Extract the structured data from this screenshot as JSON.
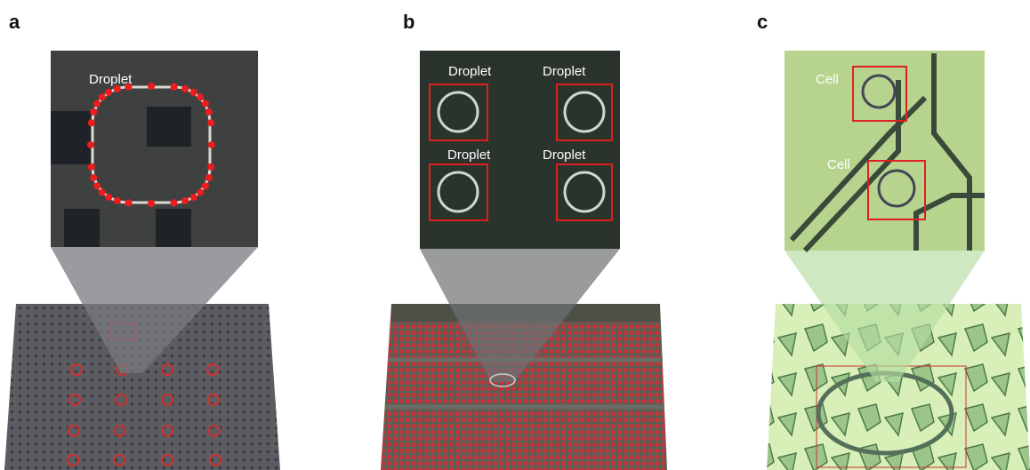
{
  "panels": [
    {
      "label": "a",
      "annotations": [
        "Droplet"
      ]
    },
    {
      "label": "b",
      "annotations": [
        "Droplet",
        "Droplet",
        "Droplet",
        "Droplet"
      ]
    },
    {
      "label": "c",
      "annotations": [
        "Cell",
        "Cell"
      ]
    }
  ]
}
